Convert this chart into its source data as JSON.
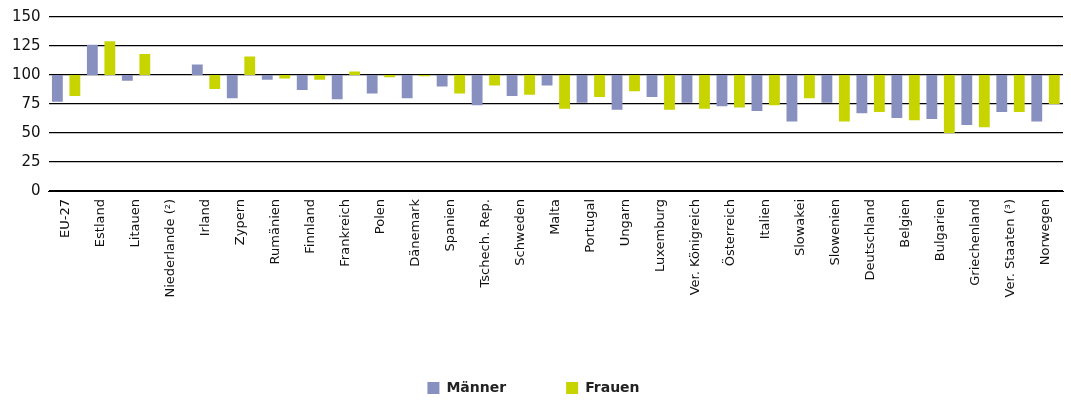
{
  "chart_data": {
    "type": "bar",
    "categories": [
      "EU-27",
      "Estland",
      "Litauen",
      "Niederlande (²)",
      "Irland",
      "Zypern",
      "Rumänien",
      "Finnland",
      "Frankreich",
      "Polen",
      "Dänemark",
      "Spanien",
      "Tschech. Rep.",
      "Schweden",
      "Malta",
      "Portugal",
      "Ungarn",
      "Luxemburg",
      "Ver. Königreich",
      "Österreich",
      "Italien",
      "Slowakei",
      "Slowenien",
      "Deutschland",
      "Belgien",
      "Bulgarien",
      "Griechenland",
      "Ver. Staaten (³)",
      "Norwegen"
    ],
    "series": [
      {
        "name": "Männer",
        "color": "#8890c0",
        "base": [
          100,
          100,
          100,
          null,
          100,
          100,
          100,
          100,
          100,
          100,
          100,
          100,
          100,
          100,
          100,
          100,
          100,
          100,
          100,
          100,
          100,
          100,
          100,
          100,
          100,
          100,
          100,
          100,
          100
        ],
        "values": [
          -23,
          26,
          -5,
          null,
          9,
          -20,
          -4,
          -13,
          -21,
          -16,
          -20,
          -10,
          -26,
          -18,
          -9,
          -24,
          -30,
          -19,
          -24,
          -27,
          -31,
          -40,
          -24,
          -33,
          -37,
          -38,
          -43,
          -32,
          -40
        ]
      },
      {
        "name": "Frauen",
        "color": "#c8d400",
        "base": [
          100,
          100,
          100,
          null,
          100,
          100,
          100,
          100,
          100,
          100,
          100,
          100,
          100,
          100,
          100,
          100,
          100,
          100,
          100,
          100,
          100,
          100,
          100,
          100,
          100,
          100,
          100,
          100,
          100
        ],
        "values": [
          -18,
          29,
          18,
          null,
          -12,
          16,
          -3,
          -4,
          3,
          -2,
          -1,
          -16,
          -9,
          -17,
          -29,
          -19,
          -14,
          -30,
          -29,
          -28,
          -26,
          -20,
          -40,
          -32,
          -39,
          -50,
          -45,
          -32,
          -25
        ]
      }
    ],
    "ylim": [
      0,
      150
    ],
    "yticks": [
      0,
      25,
      50,
      75,
      100,
      125,
      150
    ],
    "grid": "y",
    "legend": "bottom"
  }
}
